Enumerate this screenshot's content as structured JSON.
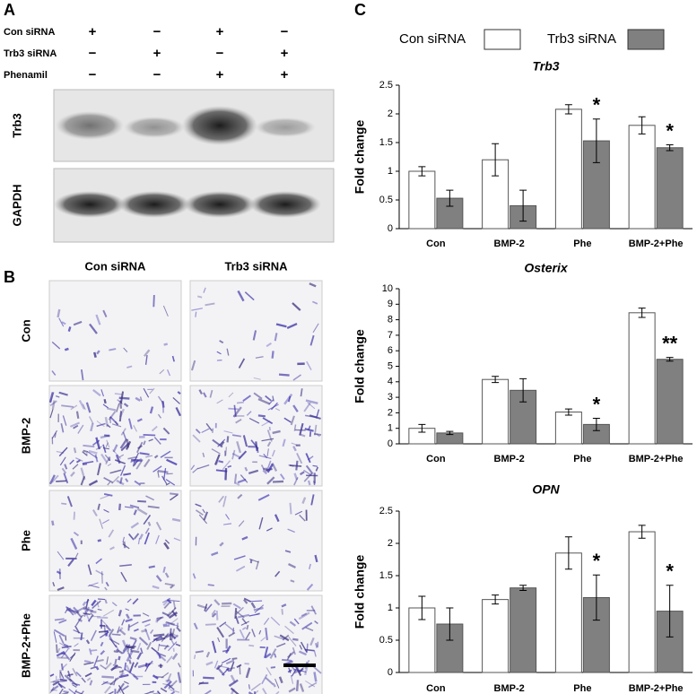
{
  "panel_a": {
    "label": "A",
    "rows": [
      {
        "name": "Con siRNA",
        "marks": [
          "+",
          "−",
          "+",
          "−"
        ]
      },
      {
        "name": "Trb3 siRNA",
        "marks": [
          "−",
          "+",
          "−",
          "+"
        ]
      },
      {
        "name": "Phenamil",
        "marks": [
          "−",
          "−",
          "+",
          "+"
        ]
      }
    ],
    "blots": [
      "Trb3",
      "GAPDH"
    ]
  },
  "panel_b": {
    "label": "B",
    "columns": [
      "Con  siRNA",
      "Trb3 siRNA"
    ],
    "rows": [
      "Con",
      "BMP-2",
      "Phe",
      "BMP-2+Phe"
    ]
  },
  "panel_c": {
    "label": "C"
  },
  "chart_data": [
    {
      "type": "bar",
      "title": "Trb3",
      "y_label": "Fold change",
      "categories": [
        "Con",
        "BMP-2",
        "Phe",
        "BMP-2+Phe"
      ],
      "series": [
        {
          "name": "Con siRNA",
          "color": "#ffffff",
          "values": [
            1.0,
            1.2,
            2.08,
            1.8
          ],
          "errors": [
            0.08,
            0.28,
            0.08,
            0.15
          ]
        },
        {
          "name": "Trb3 siRNA",
          "color": "#808080",
          "values": [
            0.53,
            0.4,
            1.53,
            1.41
          ],
          "errors": [
            0.14,
            0.27,
            0.38,
            0.05
          ]
        }
      ],
      "ylim": [
        0,
        2.5
      ],
      "yticks": [
        0,
        0.5,
        1,
        1.5,
        2,
        2.5
      ],
      "annotations": [
        {
          "text": "*",
          "category": "Phe"
        },
        {
          "text": "*",
          "category": "BMP-2+Phe"
        }
      ]
    },
    {
      "type": "bar",
      "title": "Osterix",
      "y_label": "Fold change",
      "categories": [
        "Con",
        "BMP-2",
        "Phe",
        "BMP-2+Phe"
      ],
      "series": [
        {
          "color": "#ffffff",
          "values": [
            1.0,
            4.15,
            2.05,
            8.45
          ],
          "errors": [
            0.25,
            0.2,
            0.2,
            0.3
          ]
        },
        {
          "color": "#808080",
          "values": [
            0.7,
            3.45,
            1.25,
            5.45
          ],
          "errors": [
            0.1,
            0.75,
            0.4,
            0.12
          ]
        }
      ],
      "ylim": [
        0,
        10
      ],
      "yticks": [
        0,
        1,
        2,
        3,
        4,
        5,
        6,
        7,
        8,
        9,
        10
      ],
      "annotations": [
        {
          "text": "*",
          "category": "Phe"
        },
        {
          "text": "**",
          "category": "BMP-2+Phe"
        }
      ]
    },
    {
      "type": "bar",
      "title": "OPN",
      "y_label": "Fold change",
      "categories": [
        "Con",
        "BMP-2",
        "Phe",
        "BMP-2+Phe"
      ],
      "series": [
        {
          "color": "#ffffff",
          "values": [
            1.0,
            1.13,
            1.85,
            2.18
          ],
          "errors": [
            0.18,
            0.07,
            0.25,
            0.1
          ]
        },
        {
          "color": "#808080",
          "values": [
            0.75,
            1.31,
            1.16,
            0.95
          ],
          "errors": [
            0.25,
            0.04,
            0.35,
            0.4
          ]
        }
      ],
      "ylim": [
        0,
        2.5
      ],
      "yticks": [
        0,
        0.5,
        1,
        1.5,
        2,
        2.5
      ],
      "annotations": [
        {
          "text": "*",
          "category": "Phe"
        },
        {
          "text": "*",
          "category": "BMP-2+Phe"
        }
      ]
    }
  ]
}
